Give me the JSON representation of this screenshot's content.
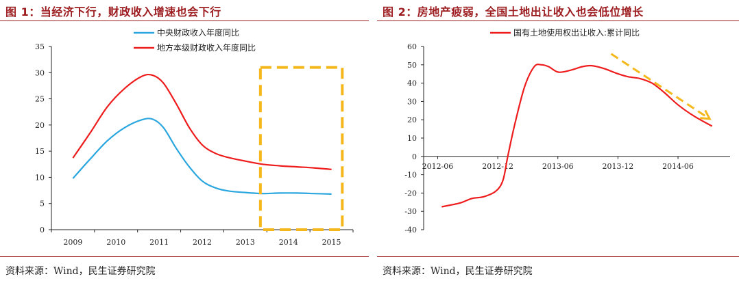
{
  "left": {
    "title": "图 1：当经济下行，财政收入增速也会下行",
    "source": "资料来源：Wind，民生证券研究院",
    "chart_data": {
      "type": "line",
      "x_ticks": [
        "2009",
        "2010",
        "2011",
        "2012",
        "2013",
        "2014",
        "2015"
      ],
      "ylim": [
        0,
        35
      ],
      "y_ticks": [
        0,
        5,
        10,
        15,
        20,
        25,
        30,
        35
      ],
      "series": [
        {
          "name": "中央财政收入年度同比",
          "color": "#2aa6df",
          "x": [
            2009.0,
            2009.4,
            2009.8,
            2010.2,
            2010.6,
            2010.85,
            2011.1,
            2011.4,
            2011.7,
            2012.0,
            2012.3,
            2012.6,
            2013.0,
            2013.4,
            2013.8,
            2014.2,
            2014.6,
            2015.0
          ],
          "y": [
            9.8,
            13.5,
            17.0,
            19.5,
            21.0,
            21.1,
            19.5,
            15.5,
            12.0,
            9.3,
            8.0,
            7.4,
            7.1,
            6.9,
            7.0,
            7.0,
            6.9,
            6.8
          ]
        },
        {
          "name": "地方本级财政收入年度同比",
          "color": "#ee1c1c",
          "x": [
            2009.0,
            2009.4,
            2009.8,
            2010.2,
            2010.6,
            2010.85,
            2011.1,
            2011.4,
            2011.7,
            2012.0,
            2012.3,
            2012.6,
            2013.0,
            2013.4,
            2013.8,
            2014.2,
            2014.6,
            2015.0
          ],
          "y": [
            13.7,
            18.5,
            23.5,
            27.0,
            29.3,
            29.5,
            28.0,
            24.0,
            19.5,
            16.2,
            14.6,
            13.8,
            13.1,
            12.5,
            12.2,
            12.0,
            11.8,
            11.5
          ]
        }
      ],
      "highlight_box": {
        "x_range": [
          2013.35,
          2015.25
        ],
        "y_range": [
          0,
          31.0
        ],
        "color": "#f5b81c",
        "style": "dashed"
      }
    }
  },
  "right": {
    "title": "图 2：房地产疲弱，全国土地出让收入也会低位增长",
    "source": "资料来源：Wind，民生证券研究院",
    "chart_data": {
      "type": "line",
      "x_ticks": [
        "2012-06",
        "2012-12",
        "2013-06",
        "2013-12",
        "2014-06"
      ],
      "ylim": [
        -40,
        60
      ],
      "y_ticks": [
        -40,
        -30,
        -20,
        -10,
        0,
        10,
        20,
        30,
        40,
        50,
        60
      ],
      "series": [
        {
          "name": "国有土地使用权出让收入:累计同比",
          "color": "#ee1c1c",
          "x": [
            2012.45,
            2012.6,
            2012.7,
            2012.8,
            2012.9,
            2012.96,
            2013.0,
            2013.06,
            2013.14,
            2013.22,
            2013.28,
            2013.34,
            2013.42,
            2013.52,
            2013.62,
            2013.7,
            2013.8,
            2013.9,
            2014.0,
            2014.1,
            2014.2,
            2014.3,
            2014.42,
            2014.55,
            2014.7
          ],
          "y": [
            -27.5,
            -25.5,
            -23,
            -22,
            -19,
            -13,
            0,
            18,
            38,
            49,
            50,
            49,
            46,
            47,
            49,
            49.5,
            48,
            45.5,
            43.5,
            42.5,
            40,
            35,
            28,
            22,
            16.5
          ]
        }
      ],
      "trend_arrow": {
        "from": [
          2013.86,
          56
        ],
        "to": [
          2014.68,
          20.5
        ],
        "color": "#f5b81c",
        "style": "dashed"
      }
    }
  }
}
